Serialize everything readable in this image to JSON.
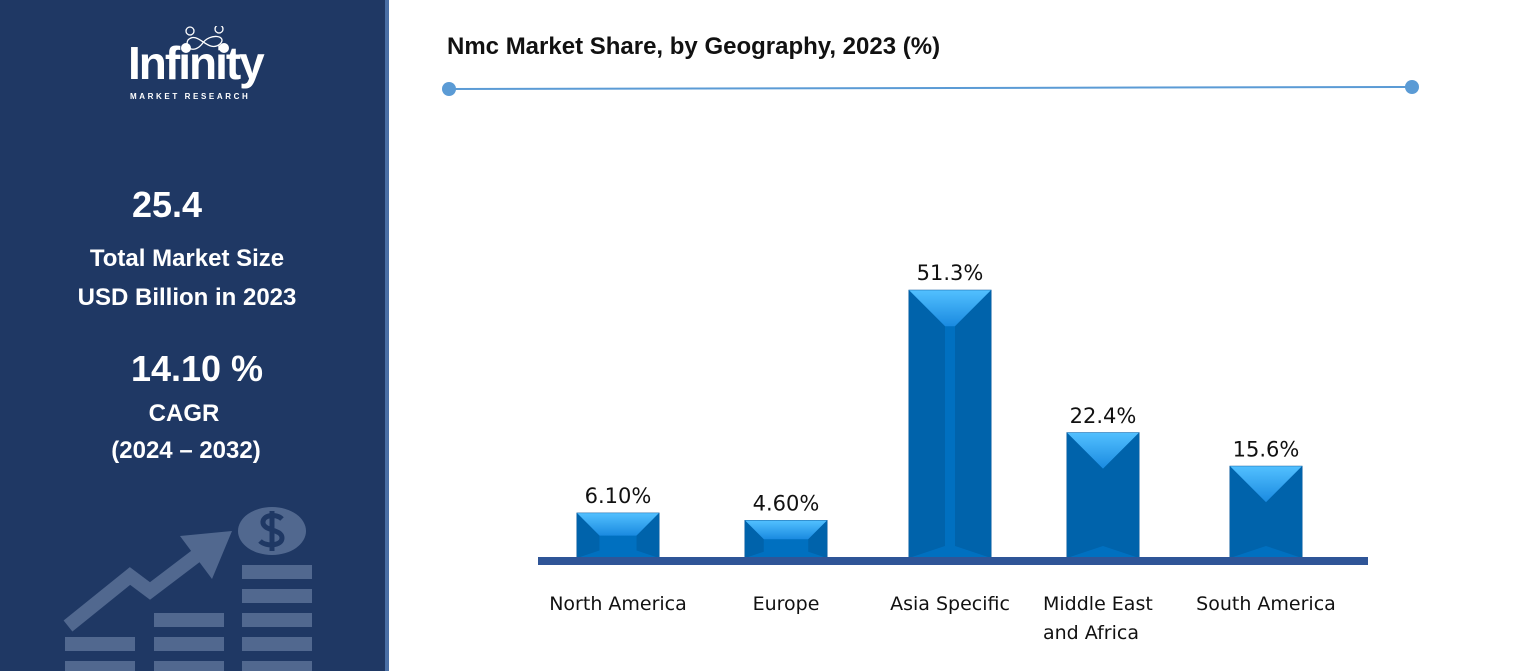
{
  "sidebar": {
    "logo": {
      "word": "Infinity",
      "sub": "MARKET RESEARCH"
    },
    "market_size_value": "25.4",
    "market_size_label_1": "Total Market Size",
    "market_size_label_2": "USD Billion in 2023",
    "cagr_value": "14.10 %",
    "cagr_label": "CAGR",
    "cagr_period": "(2024 – 2032)",
    "decor_icons": [
      "dollar-coin-icon",
      "growth-arrow-icon",
      "bar-stack-icon"
    ]
  },
  "colors": {
    "sidebar": "#1f3864",
    "bar": "#0070c0",
    "bar_highlight": "#3fb0f5",
    "axis": "#2f5597",
    "title_line": "#5b9bd5"
  },
  "chart_data": {
    "type": "bar",
    "title": "Nmc Market Share, by Geography, 2023 (%)",
    "categories": [
      "North America",
      "Europe",
      "Asia Specific",
      "Middle East and Africa",
      "South America"
    ],
    "category_lines": [
      [
        "North America"
      ],
      [
        "Europe"
      ],
      [
        "Asia Specific"
      ],
      [
        "Middle East",
        "and Africa"
      ],
      [
        "South America"
      ]
    ],
    "values": [
      6.1,
      4.6,
      51.3,
      22.4,
      15.6
    ],
    "data_labels": [
      "6.10%",
      "4.60%",
      "51.3%",
      "22.4%",
      "15.6%"
    ],
    "xlabel": "",
    "ylabel": "",
    "grid": false,
    "legend": "none"
  }
}
